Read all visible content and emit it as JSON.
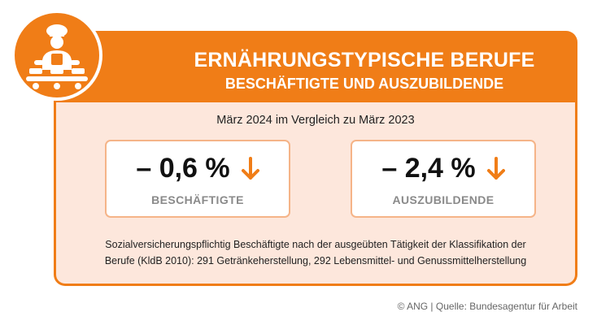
{
  "header": {
    "title": "ERNÄHRUNGSTYPISCHE BERUFE",
    "subtitle": "BESCHÄFTIGTE UND AUSZUBILDENDE"
  },
  "comparison": "März 2024 im Vergleich zu März 2023",
  "cards": [
    {
      "value": "– 0,6 %",
      "label": "BESCHÄFTIGTE",
      "trend_icon": "arrow-down-icon"
    },
    {
      "value": "– 2,4 %",
      "label": "AUSZUBILDENDE",
      "trend_icon": "arrow-down-icon"
    }
  ],
  "note": {
    "line1": "Sozialversicherungspflichtig Beschäftigte nach der ausgeübten Tätigkeit der Klassifikation der",
    "line2": "Berufe (KldB 2010): 291 Getränkeherstellung, 292 Lebensmittel- und Genussmittelherstellung"
  },
  "source": "© ANG | Quelle: Bundesagentur für Arbeit",
  "icon": "food-worker-conveyor-icon",
  "colors": {
    "accent": "#f07d17",
    "panel": "#fde7dc",
    "card_border": "#f5b488",
    "label_gray": "#8a8a8a"
  }
}
